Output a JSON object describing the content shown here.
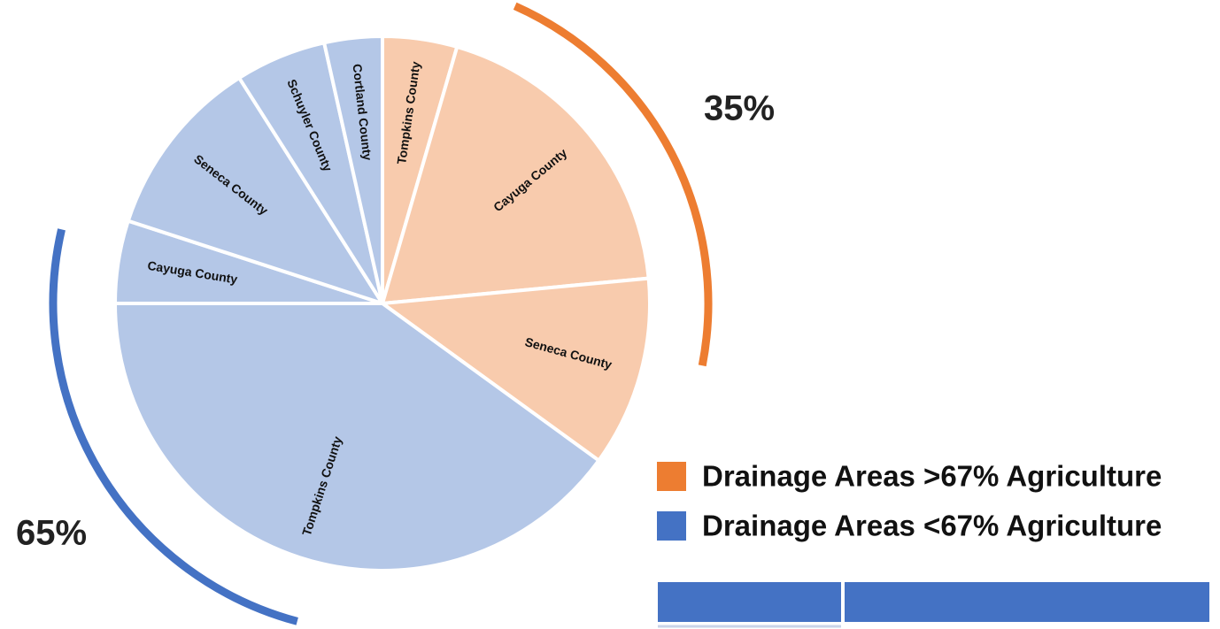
{
  "chart_data": {
    "type": "pie",
    "categories": [
      "Tompkins County",
      "Cayuga County",
      "Seneca County",
      "Tompkins County",
      "Cayuga County",
      "Seneca County",
      "Schuyler County",
      "Cortland County"
    ],
    "values": [
      4.5,
      19,
      11.5,
      40,
      5,
      11,
      5.5,
      3.5
    ],
    "colors": [
      "#f8cbad",
      "#f8cbad",
      "#f8cbad",
      "#b4c7e7",
      "#b4c7e7",
      "#b4c7e7",
      "#b4c7e7",
      "#b4c7e7"
    ],
    "groups": {
      "names": [
        "Drainage Areas >67% Agriculture",
        "Drainage Areas <67% Agriculture"
      ],
      "values": [
        35,
        65
      ],
      "value_labels": [
        "35%",
        "65%"
      ],
      "colors": [
        "#ed7d31",
        "#4472c4"
      ]
    }
  }
}
